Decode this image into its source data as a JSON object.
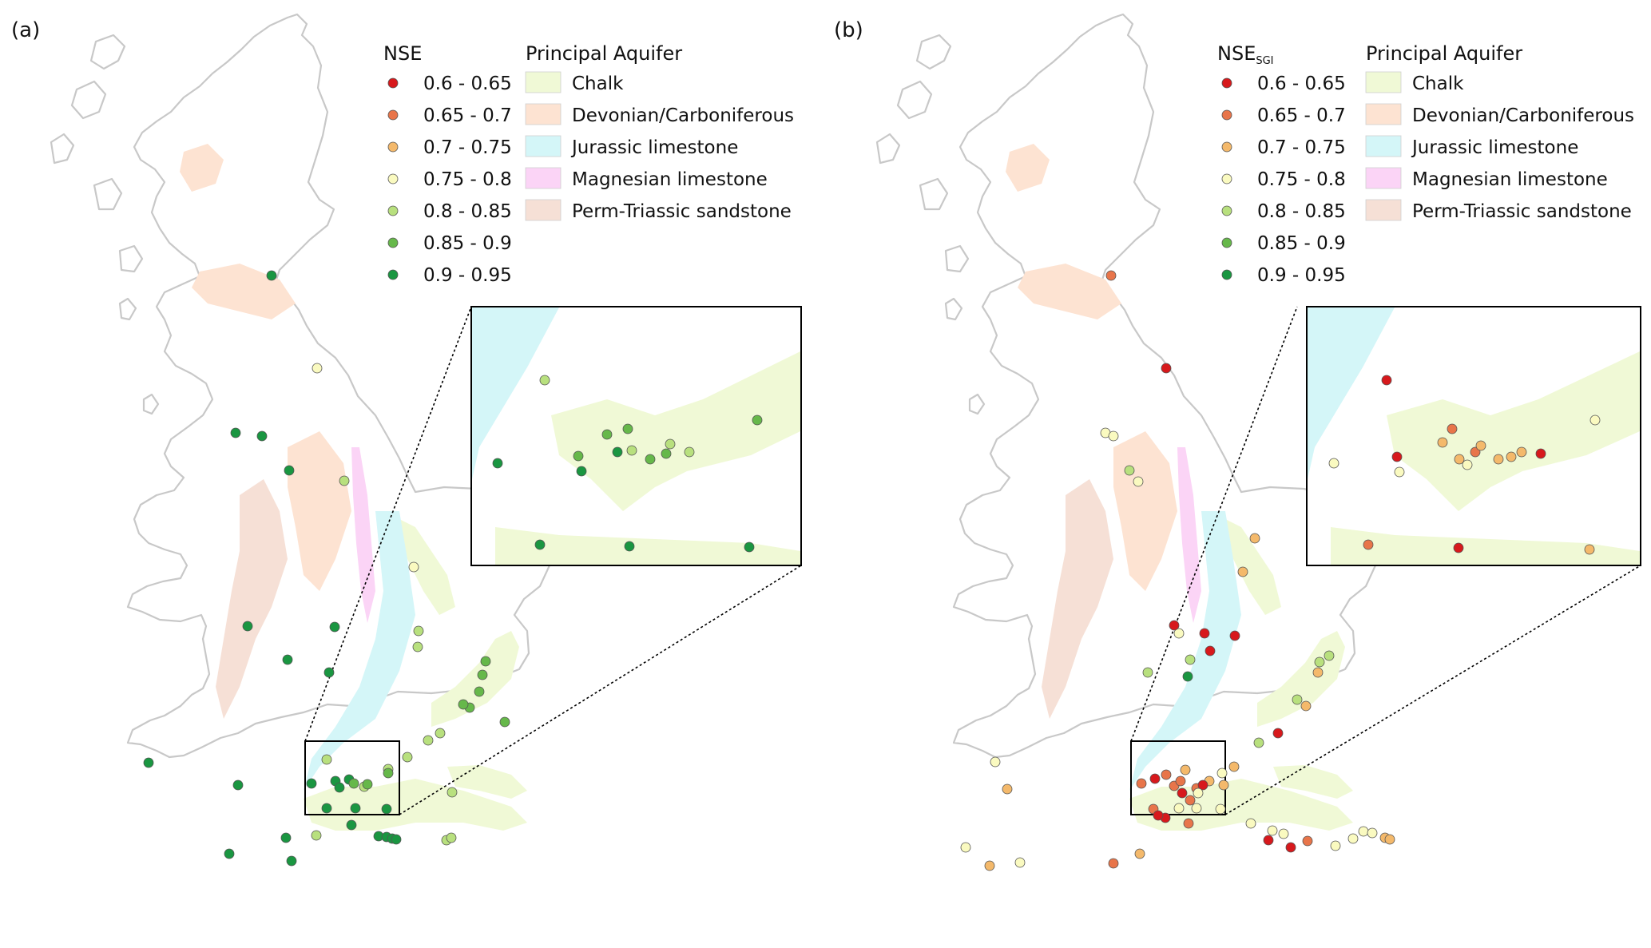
{
  "class_colors": {
    "c1": "#d7191c",
    "c2": "#e8754a",
    "c3": "#f4b96b",
    "c4": "#fafac0",
    "c5": "#b8e07e",
    "c6": "#66b84a",
    "c7": "#1a9641"
  },
  "aquifer_colors": {
    "chalk": "#f0f9d6",
    "devonian": "#fde3d2",
    "jurassic": "#d4f6f8",
    "magnesian": "#fbd4f6",
    "permo": "#f6e0d6"
  },
  "panels": [
    {
      "panel_label": "(a)",
      "metric_title": "NSE",
      "metric_subscript": "",
      "aquifer_title": "Principal Aquifer",
      "classes": [
        {
          "label": "0.6 - 0.65",
          "color_key": "c1"
        },
        {
          "label": "0.65 - 0.7",
          "color_key": "c2"
        },
        {
          "label": "0.7 - 0.75",
          "color_key": "c3"
        },
        {
          "label": "0.75 - 0.8",
          "color_key": "c4"
        },
        {
          "label": "0.8 - 0.85",
          "color_key": "c5"
        },
        {
          "label": "0.85 - 0.9",
          "color_key": "c6"
        },
        {
          "label": "0.9 - 0.95",
          "color_key": "c7"
        }
      ],
      "aquifers": [
        {
          "label": "Chalk",
          "color_key": "chalk"
        },
        {
          "label": "Devonian/Carboniferous",
          "color_key": "devonian"
        },
        {
          "label": "Jurassic limestone",
          "color_key": "jurassic"
        },
        {
          "label": "Magnesian limestone",
          "color_key": "magnesian"
        },
        {
          "label": "Perm-Triassic sandstone",
          "color_key": "permo"
        }
      ]
    },
    {
      "panel_label": "(b)",
      "metric_title": "NSE",
      "metric_subscript": "SGI",
      "aquifer_title": "Principal Aquifer",
      "classes": [
        {
          "label": "0.6 - 0.65",
          "color_key": "c1"
        },
        {
          "label": "0.65 - 0.7",
          "color_key": "c2"
        },
        {
          "label": "0.7 - 0.75",
          "color_key": "c3"
        },
        {
          "label": "0.75 - 0.8",
          "color_key": "c4"
        },
        {
          "label": "0.8 - 0.85",
          "color_key": "c5"
        },
        {
          "label": "0.85 - 0.9",
          "color_key": "c6"
        },
        {
          "label": "0.9 - 0.95",
          "color_key": "c7"
        }
      ],
      "aquifers": [
        {
          "label": "Chalk",
          "color_key": "chalk"
        },
        {
          "label": "Devonian/Carboniferous",
          "color_key": "devonian"
        },
        {
          "label": "Jurassic limestone",
          "color_key": "jurassic"
        },
        {
          "label": "Magnesian limestone",
          "color_key": "magnesian"
        },
        {
          "label": "Perm-Triassic sandstone",
          "color_key": "permo"
        }
      ]
    }
  ]
}
